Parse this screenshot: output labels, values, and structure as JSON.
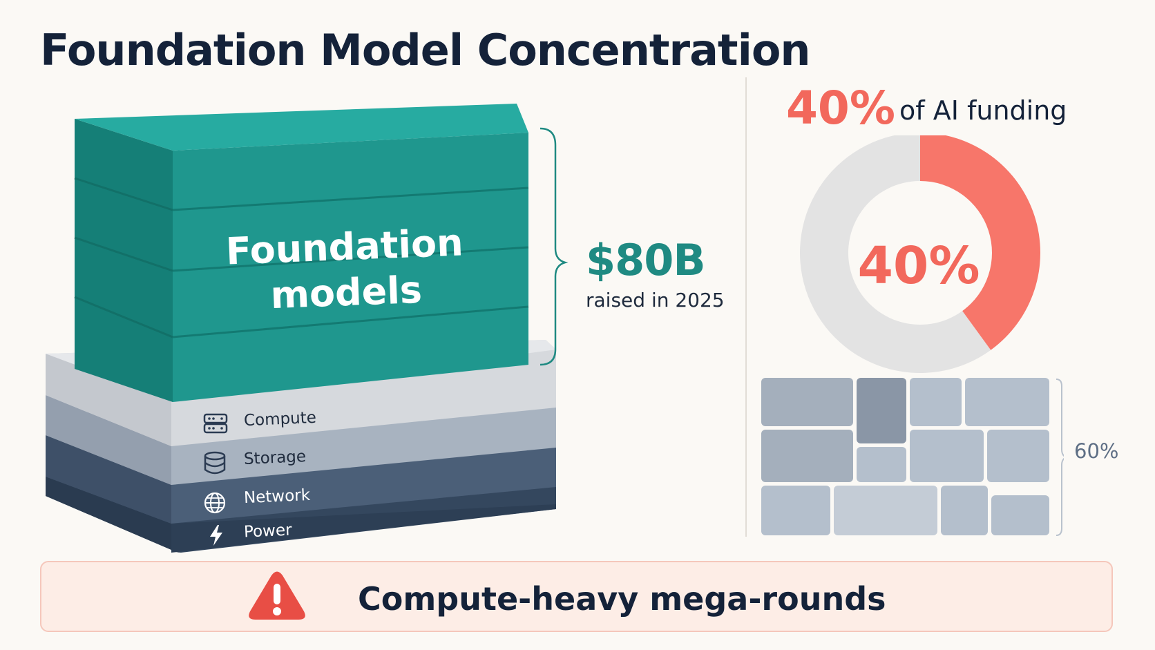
{
  "title": "Foundation Model Concentration",
  "stack": {
    "top_block_label": "Foundation models",
    "layers": [
      {
        "label": "Compute",
        "icon": "server-icon"
      },
      {
        "label": "Storage",
        "icon": "database-icon"
      },
      {
        "label": "Network",
        "icon": "globe-icon"
      },
      {
        "label": "Power",
        "icon": "lightning-icon"
      }
    ]
  },
  "stat": {
    "value": "$80B",
    "caption": "raised in 2025"
  },
  "share": {
    "headline_value": "40%",
    "headline_label": "of AI funding",
    "donut_value": "40%",
    "remainder_label": "60%",
    "fraction": 0.4
  },
  "alert": {
    "text": "Compute-heavy mega-rounds",
    "icon": "warning-icon"
  },
  "colors": {
    "teal": "#1f9b92",
    "coral": "#f7766a",
    "donut_gray": "#e3e3e3",
    "navy": "#142239"
  }
}
